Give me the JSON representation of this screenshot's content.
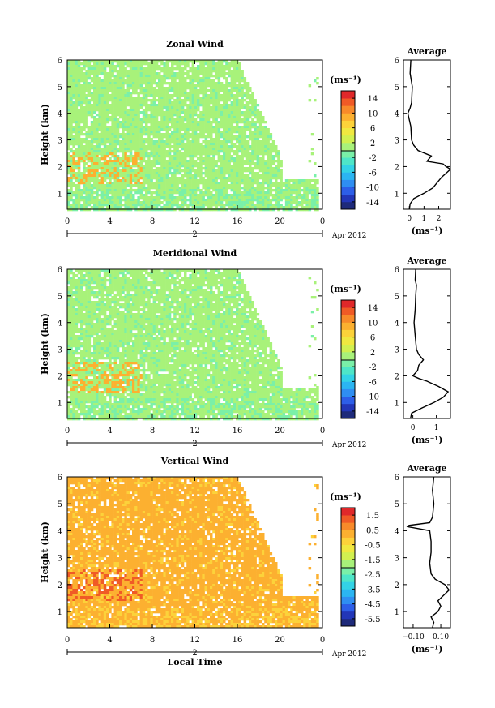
{
  "chart_data": [
    {
      "type": "heatmap",
      "title": "Zonal Wind",
      "ylabel": "Height (km)",
      "xlim": [
        0,
        24
      ],
      "ylim": [
        0.4,
        6
      ],
      "x_ticks": [
        "0",
        "4",
        "8",
        "12",
        "16",
        "20",
        "0"
      ],
      "y_ticks": [
        "1",
        "2",
        "3",
        "4",
        "5",
        "6"
      ],
      "date_label": "2",
      "month_label": "Apr 2012",
      "data_end_hour": 23.6,
      "colorbar": {
        "unit": "(ms⁻¹)",
        "ticks": [
          "14",
          "10",
          "6",
          "2",
          "-2",
          "-6",
          "-10",
          "-14"
        ],
        "range": [
          -16,
          16
        ]
      },
      "dominant_value": 0.5,
      "secondary_value": -1.5,
      "profile": {
        "title": "Average",
        "xlabel": "(ms⁻¹)",
        "x_ticks": [
          "0",
          "1",
          "2"
        ],
        "xlim": [
          -0.4,
          2.8
        ],
        "heights": [
          0.4,
          0.6,
          0.8,
          1.0,
          1.2,
          1.4,
          1.6,
          1.8,
          1.9,
          2.0,
          2.1,
          2.2,
          2.4,
          2.6,
          2.8,
          3.0,
          3.5,
          4.0,
          4.2,
          4.4,
          5.0,
          5.5,
          6.0
        ],
        "values": [
          0.0,
          0.05,
          0.3,
          1.0,
          1.6,
          1.9,
          2.2,
          2.6,
          2.8,
          2.5,
          2.3,
          1.2,
          1.5,
          0.6,
          0.3,
          0.15,
          0.1,
          -0.1,
          0.05,
          0.15,
          0.2,
          0.05,
          0.1
        ]
      }
    },
    {
      "type": "heatmap",
      "title": "Meridional Wind",
      "ylabel": "Height (km)",
      "xlim": [
        0,
        24
      ],
      "ylim": [
        0.4,
        6
      ],
      "x_ticks": [
        "0",
        "4",
        "8",
        "12",
        "16",
        "20",
        "0"
      ],
      "y_ticks": [
        "1",
        "2",
        "3",
        "4",
        "5",
        "6"
      ],
      "date_label": "2",
      "month_label": "Apr 2012",
      "data_end_hour": 23.6,
      "colorbar": {
        "unit": "(ms⁻¹)",
        "ticks": [
          "14",
          "10",
          "6",
          "2",
          "-2",
          "-6",
          "-10",
          "-14"
        ],
        "range": [
          -16,
          16
        ]
      },
      "dominant_value": 0.5,
      "secondary_value": -1.5,
      "profile": {
        "title": "Average",
        "xlabel": "(ms⁻¹)",
        "x_ticks": [
          "0",
          "1"
        ],
        "xlim": [
          -0.4,
          1.6
        ],
        "heights": [
          0.4,
          0.6,
          0.8,
          1.0,
          1.2,
          1.4,
          1.6,
          1.8,
          1.9,
          2.0,
          2.2,
          2.4,
          2.6,
          2.8,
          3.0,
          3.5,
          4.0,
          4.5,
          5.0,
          5.4,
          5.6,
          6.0
        ],
        "values": [
          -0.1,
          -0.05,
          0.4,
          0.9,
          1.3,
          1.5,
          1.1,
          0.6,
          0.25,
          0.0,
          0.2,
          0.25,
          0.45,
          0.25,
          0.15,
          0.1,
          0.05,
          0.1,
          0.12,
          0.15,
          0.1,
          0.12
        ]
      }
    },
    {
      "type": "heatmap",
      "title": "Vertical Wind",
      "ylabel": "Height (km)",
      "xlabel": "Local Time",
      "xlim": [
        0,
        24
      ],
      "ylim": [
        0.4,
        6
      ],
      "x_ticks": [
        "0",
        "4",
        "8",
        "12",
        "16",
        "20",
        "0"
      ],
      "y_ticks": [
        "1",
        "2",
        "3",
        "4",
        "5",
        "6"
      ],
      "date_label": "2",
      "month_label": "Apr 2012",
      "data_end_hour": 23.6,
      "colorbar": {
        "unit": "(ms⁻¹)",
        "ticks": [
          "1.5",
          "0.5",
          "-0.5",
          "-1.5",
          "-2.5",
          "-3.5",
          "-4.5",
          "-5.5"
        ],
        "range": [
          -6,
          2
        ]
      },
      "dominant_value": 0.0,
      "secondary_value": -0.5,
      "profile": {
        "title": "Average",
        "xlabel": "(ms⁻¹)",
        "x_ticks": [
          "−0.10",
          "0.10"
        ],
        "xlim": [
          -0.17,
          0.17
        ],
        "heights": [
          0.4,
          0.6,
          0.8,
          1.0,
          1.2,
          1.4,
          1.6,
          1.8,
          2.0,
          2.2,
          2.4,
          2.8,
          3.2,
          3.6,
          4.0,
          4.15,
          4.2,
          4.3,
          4.5,
          5.0,
          5.5,
          6.0
        ],
        "values": [
          0.04,
          0.05,
          0.03,
          0.08,
          0.1,
          0.08,
          0.12,
          0.16,
          0.13,
          0.06,
          0.03,
          0.02,
          0.03,
          0.03,
          0.02,
          -0.14,
          -0.13,
          0.02,
          0.04,
          0.05,
          0.04,
          0.05
        ]
      }
    }
  ]
}
